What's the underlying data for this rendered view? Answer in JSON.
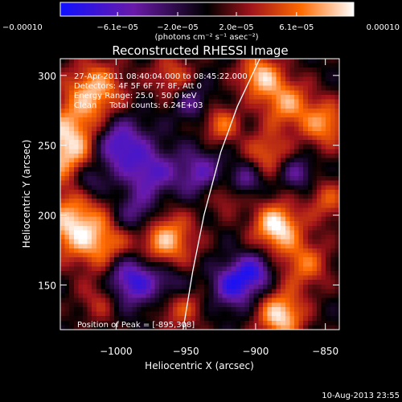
{
  "chart_data": {
    "type": "heatmap",
    "title": "Reconstructed RHESSI Image",
    "xlabel": "Heliocentric X (arcsec)",
    "ylabel": "Heliocentric Y (arcsec)",
    "xlim": [
      -1040,
      -840
    ],
    "ylim": [
      118,
      312
    ],
    "xticks": [
      -1000,
      -950,
      -900,
      -850
    ],
    "xtick_labels": [
      "−1000",
      "−950",
      "−900",
      "−850"
    ],
    "yticks": [
      150,
      200,
      250,
      300
    ],
    "ytick_labels": [
      "150",
      "200",
      "250",
      "300"
    ],
    "colorbar": {
      "min": -0.0001,
      "max": 0.0001,
      "ticks": [
        -0.0001,
        -6.1e-05,
        -2e-05,
        2e-05,
        6.1e-05,
        0.0001
      ],
      "tick_labels": [
        "−0.00010",
        "−6.1e−05",
        "−2.0e−05",
        "2.0e−05",
        "6.1e−05",
        "0.00010"
      ],
      "units_label": "(photons cm⁻² s⁻¹ asec⁻²)",
      "colors": [
        "#1010ff",
        "#6a1aa8",
        "#000000",
        "#a0141b",
        "#ff6a00",
        "#ffffff"
      ]
    },
    "info_lines": [
      "27-Apr-2011 08:40:04.000 to 08:45:22.000",
      "Detectors: 4F 5F 6F 7F 8F, Att 0",
      "Energy Range: 25.0 - 50.0 keV",
      "Clean     Total counts: 6.24E+03"
    ],
    "peak_label": "Position of Peak = [-895,308]",
    "peak": {
      "x": -895,
      "y": 308
    },
    "limb": [
      [
        -952,
        118
      ],
      [
        -945,
        160
      ],
      [
        -937,
        200
      ],
      [
        -925,
        245
      ],
      [
        -913,
        278
      ],
      [
        -897,
        312
      ]
    ],
    "blobs": [
      {
        "x": -1033,
        "y": 250,
        "r": 20,
        "v": 1.0
      },
      {
        "x": -1030,
        "y": 192,
        "r": 16,
        "v": 0.9
      },
      {
        "x": -1015,
        "y": 290,
        "r": 15,
        "v": 0.75
      },
      {
        "x": -1005,
        "y": 175,
        "r": 14,
        "v": 0.6
      },
      {
        "x": -1010,
        "y": 140,
        "r": 12,
        "v": 0.45
      },
      {
        "x": -965,
        "y": 182,
        "r": 15,
        "v": 0.85
      },
      {
        "x": -960,
        "y": 300,
        "r": 11,
        "v": 0.5
      },
      {
        "x": -955,
        "y": 135,
        "r": 12,
        "v": 0.55
      },
      {
        "x": -925,
        "y": 265,
        "r": 10,
        "v": 0.6
      },
      {
        "x": -922,
        "y": 215,
        "r": 10,
        "v": 0.4
      },
      {
        "x": -892,
        "y": 245,
        "r": 11,
        "v": 0.55
      },
      {
        "x": -885,
        "y": 192,
        "r": 12,
        "v": 1.0
      },
      {
        "x": -878,
        "y": 280,
        "r": 13,
        "v": 0.7
      },
      {
        "x": -865,
        "y": 165,
        "r": 13,
        "v": 0.6
      },
      {
        "x": -882,
        "y": 128,
        "r": 12,
        "v": 0.95
      },
      {
        "x": -850,
        "y": 265,
        "r": 12,
        "v": 0.7
      },
      {
        "x": -848,
        "y": 210,
        "r": 11,
        "v": 0.5
      },
      {
        "x": -897,
        "y": 300,
        "r": 11,
        "v": 0.8
      },
      {
        "x": -1000,
        "y": 250,
        "r": 14,
        "v": -0.95
      },
      {
        "x": -975,
        "y": 230,
        "r": 12,
        "v": -0.6
      },
      {
        "x": -985,
        "y": 200,
        "r": 11,
        "v": -0.55
      },
      {
        "x": -990,
        "y": 155,
        "r": 14,
        "v": -0.95
      },
      {
        "x": -960,
        "y": 150,
        "r": 10,
        "v": -0.45
      },
      {
        "x": -940,
        "y": 230,
        "r": 12,
        "v": -0.55
      },
      {
        "x": -915,
        "y": 150,
        "r": 11,
        "v": -0.8
      },
      {
        "x": -900,
        "y": 160,
        "r": 9,
        "v": -0.6
      },
      {
        "x": -908,
        "y": 225,
        "r": 8,
        "v": -0.5
      },
      {
        "x": -1020,
        "y": 225,
        "r": 9,
        "v": -0.55
      },
      {
        "x": -870,
        "y": 230,
        "r": 8,
        "v": -0.45
      },
      {
        "x": -945,
        "y": 280,
        "r": 9,
        "v": -0.4
      }
    ]
  },
  "footer": {
    "date_stamp": "10-Aug-2013 23:55"
  }
}
